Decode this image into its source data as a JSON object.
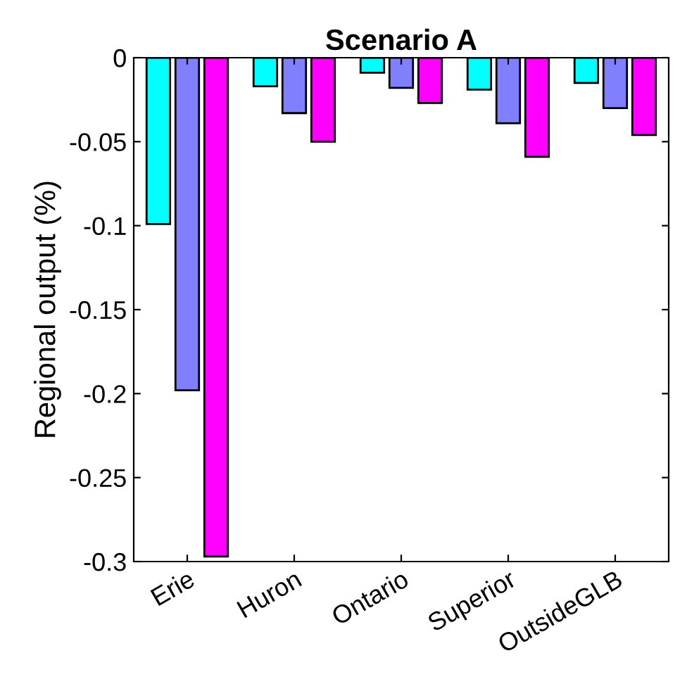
{
  "chart_data": {
    "type": "bar",
    "title": "Scenario A",
    "ylabel": "Regional output (%)",
    "categories": [
      "Erie",
      "Huron",
      "Ontario",
      "Superior",
      "OutsideGLB"
    ],
    "series": [
      {
        "color": "#00ffff",
        "values": [
          -0.099,
          -0.017,
          -0.009,
          -0.019,
          -0.015
        ]
      },
      {
        "color": "#8080ff",
        "values": [
          -0.198,
          -0.033,
          -0.018,
          -0.039,
          -0.03
        ]
      },
      {
        "color": "#ff00ff",
        "values": [
          -0.297,
          -0.05,
          -0.027,
          -0.059,
          -0.046
        ]
      }
    ],
    "ylim": [
      -0.3,
      0
    ],
    "yticks": [
      -0.3,
      -0.25,
      -0.2,
      -0.15,
      -0.1,
      -0.05,
      0
    ],
    "grid": false,
    "legend": false
  }
}
